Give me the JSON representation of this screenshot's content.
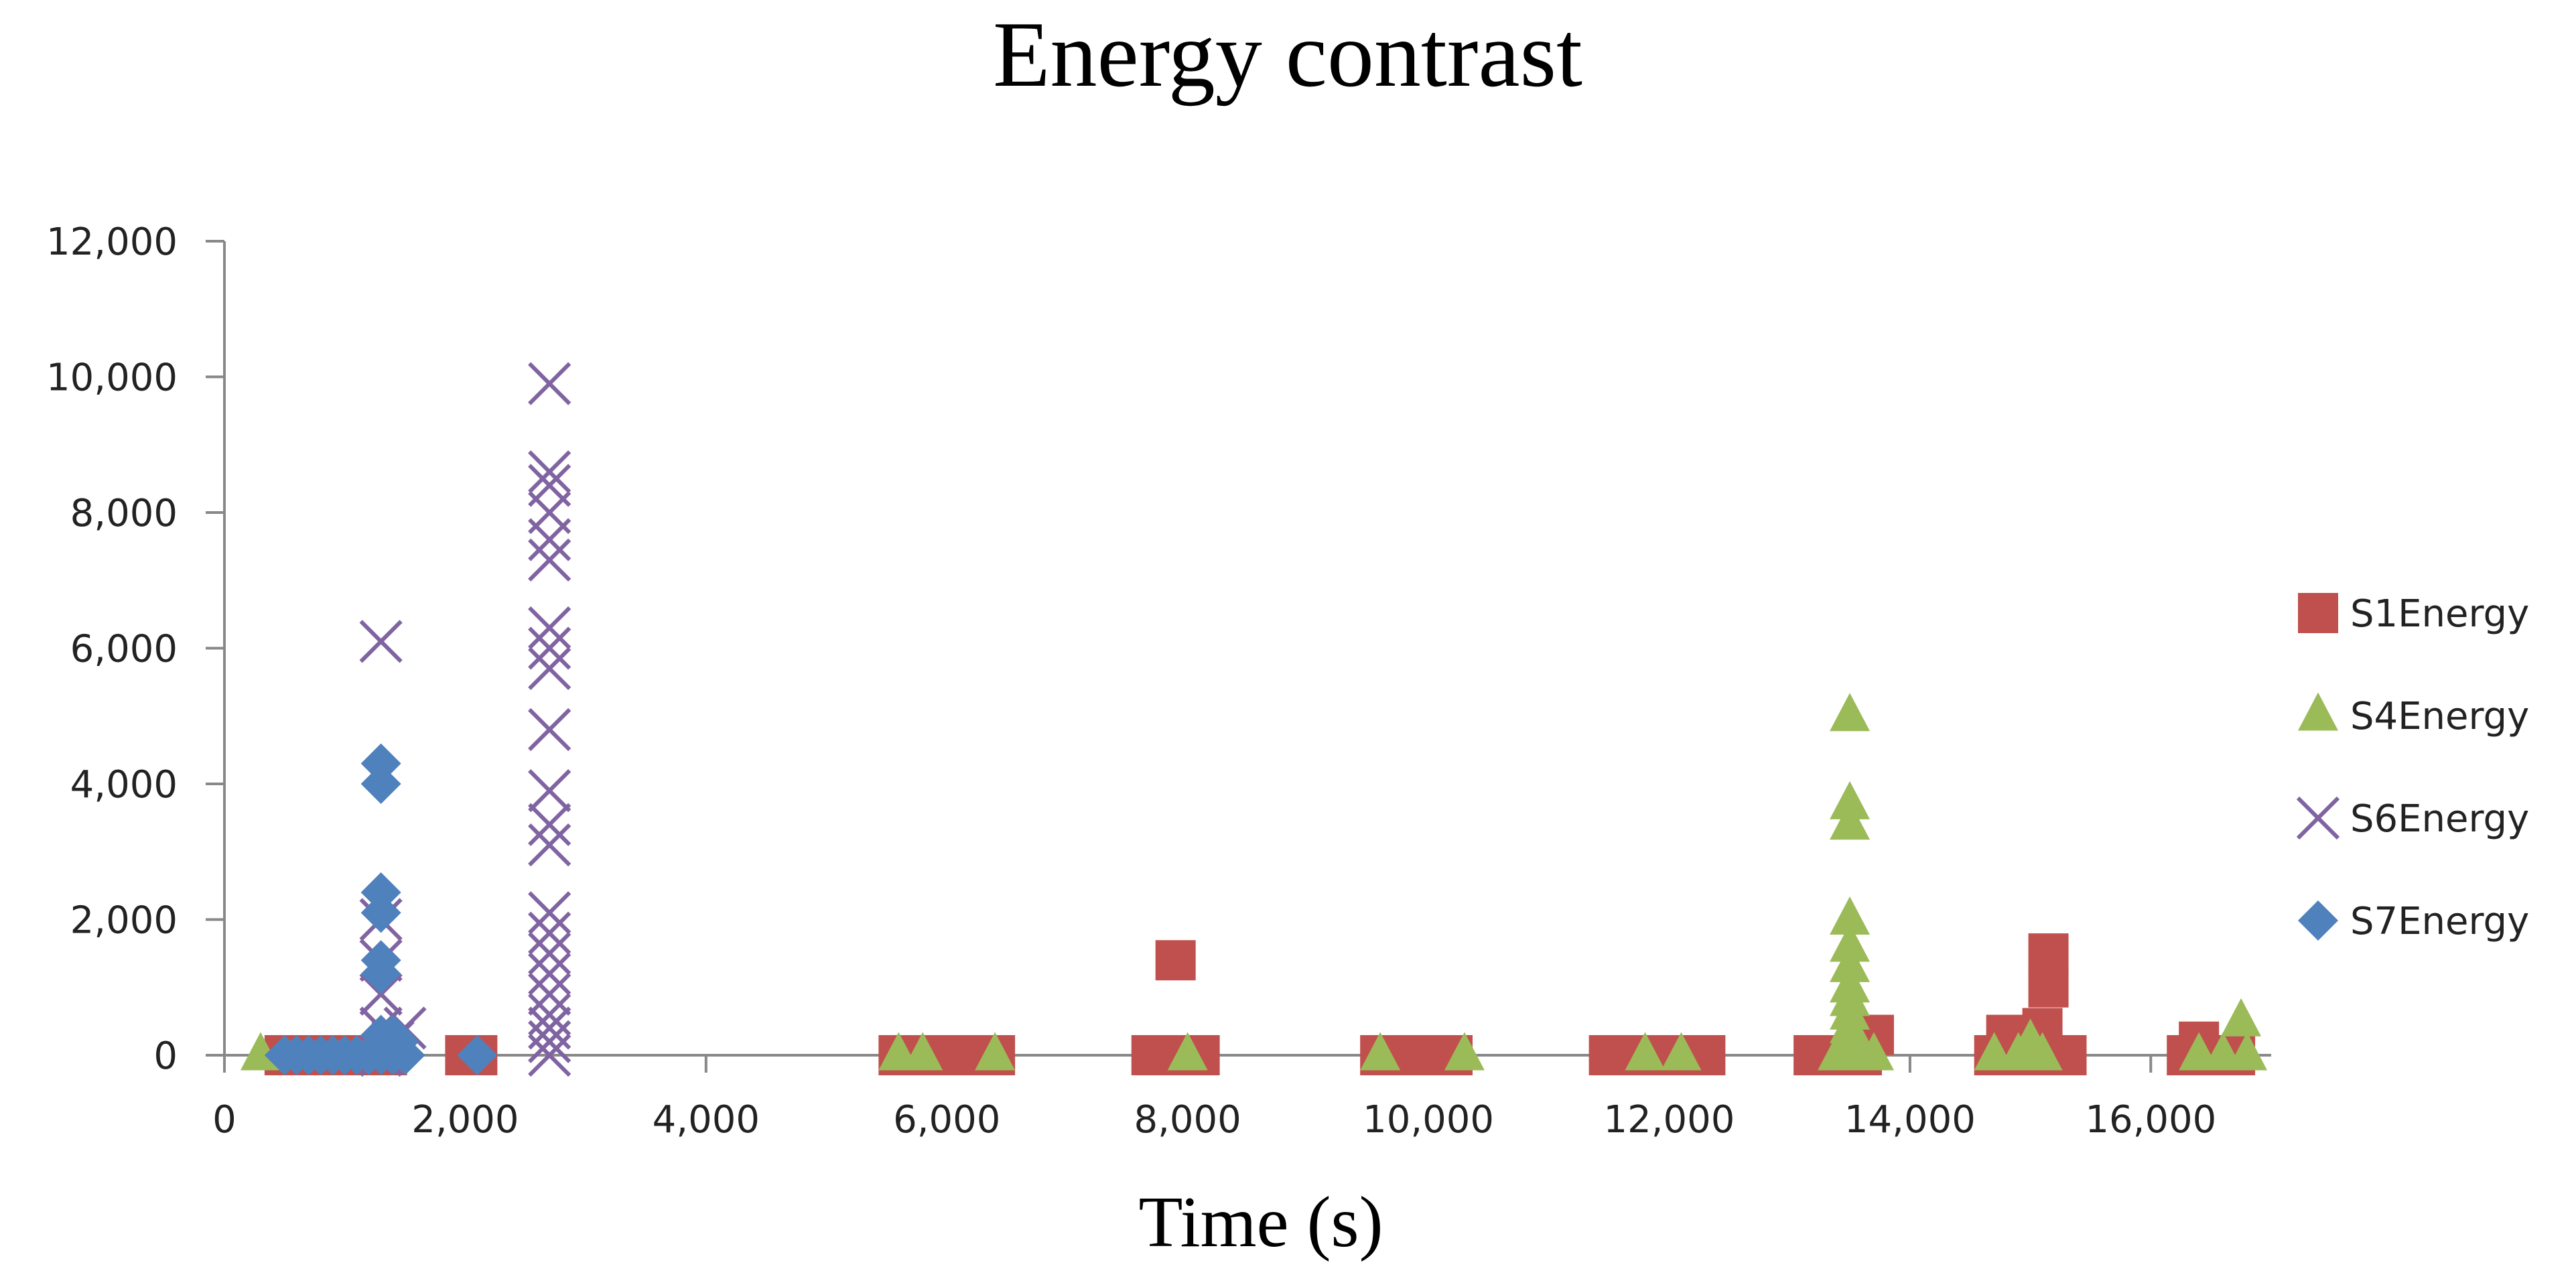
{
  "chart_data": {
    "type": "scatter",
    "title": "Energy contrast",
    "xlabel": "Time (s)",
    "ylabel": "",
    "xlim": [
      0,
      17000
    ],
    "ylim": [
      0,
      12000
    ],
    "xticks": [
      0,
      2000,
      4000,
      6000,
      8000,
      10000,
      12000,
      14000,
      16000
    ],
    "xtick_labels": [
      "0",
      "2,000",
      "4,000",
      "6,000",
      "8,000",
      "10,000",
      "12,000",
      "14,000",
      "16,000"
    ],
    "yticks": [
      0,
      2000,
      4000,
      6000,
      8000,
      10000,
      12000
    ],
    "ytick_labels": [
      "0",
      "2,000",
      "4,000",
      "6,000",
      "8,000",
      "10,000",
      "12,000"
    ],
    "grid": false,
    "legend_position": "right",
    "series": [
      {
        "name": "S1Energy",
        "marker": "square",
        "color": "#C0504D",
        "points": [
          [
            500,
            0
          ],
          [
            650,
            0
          ],
          [
            800,
            0
          ],
          [
            950,
            0
          ],
          [
            1100,
            0
          ],
          [
            1250,
            0
          ],
          [
            1350,
            0
          ],
          [
            2000,
            0
          ],
          [
            2100,
            0
          ],
          [
            5600,
            0
          ],
          [
            5800,
            0
          ],
          [
            6000,
            0
          ],
          [
            6200,
            0
          ],
          [
            6400,
            0
          ],
          [
            7700,
            0
          ],
          [
            7900,
            0
          ],
          [
            8100,
            0
          ],
          [
            7900,
            1400
          ],
          [
            9600,
            0
          ],
          [
            9800,
            0
          ],
          [
            10000,
            0
          ],
          [
            10200,
            0
          ],
          [
            11500,
            0
          ],
          [
            11700,
            0
          ],
          [
            11900,
            0
          ],
          [
            12100,
            0
          ],
          [
            12300,
            0
          ],
          [
            13200,
            0
          ],
          [
            13400,
            0
          ],
          [
            13600,
            0
          ],
          [
            13700,
            300
          ],
          [
            14700,
            0
          ],
          [
            14900,
            0
          ],
          [
            15100,
            0
          ],
          [
            15300,
            0
          ],
          [
            14800,
            300
          ],
          [
            15100,
            400
          ],
          [
            15150,
            1000
          ],
          [
            15150,
            1500
          ],
          [
            16300,
            0
          ],
          [
            16500,
            0
          ],
          [
            16700,
            0
          ],
          [
            16400,
            200
          ]
        ]
      },
      {
        "name": "S4Energy",
        "marker": "triangle",
        "color": "#9BBB59",
        "points": [
          [
            300,
            0
          ],
          [
            5600,
            0
          ],
          [
            5800,
            0
          ],
          [
            6400,
            0
          ],
          [
            8000,
            0
          ],
          [
            9600,
            0
          ],
          [
            10300,
            0
          ],
          [
            11800,
            0
          ],
          [
            12100,
            0
          ],
          [
            13400,
            0
          ],
          [
            13500,
            0
          ],
          [
            13600,
            0
          ],
          [
            13700,
            0
          ],
          [
            13500,
            200
          ],
          [
            13500,
            400
          ],
          [
            13500,
            600
          ],
          [
            13500,
            800
          ],
          [
            13500,
            1000
          ],
          [
            13500,
            1300
          ],
          [
            13500,
            1600
          ],
          [
            13500,
            2000
          ],
          [
            13500,
            3400
          ],
          [
            13500,
            3700
          ],
          [
            13500,
            5000
          ],
          [
            14700,
            0
          ],
          [
            14900,
            0
          ],
          [
            15100,
            0
          ],
          [
            15000,
            200
          ],
          [
            16400,
            0
          ],
          [
            16600,
            0
          ],
          [
            16800,
            0
          ],
          [
            16750,
            500
          ]
        ]
      },
      {
        "name": "S6Energy",
        "marker": "x",
        "color": "#8064A2",
        "points": [
          [
            1300,
            0
          ],
          [
            1300,
            400
          ],
          [
            1300,
            900
          ],
          [
            1300,
            1400
          ],
          [
            1300,
            2000
          ],
          [
            1300,
            6100
          ],
          [
            1400,
            200
          ],
          [
            1500,
            400
          ],
          [
            2700,
            0
          ],
          [
            2700,
            200
          ],
          [
            2700,
            400
          ],
          [
            2700,
            600
          ],
          [
            2700,
            900
          ],
          [
            2700,
            1200
          ],
          [
            2700,
            1500
          ],
          [
            2700,
            1800
          ],
          [
            2700,
            2100
          ],
          [
            2700,
            3100
          ],
          [
            2700,
            3400
          ],
          [
            2700,
            3900
          ],
          [
            2700,
            4800
          ],
          [
            2700,
            5700
          ],
          [
            2700,
            6000
          ],
          [
            2700,
            6300
          ],
          [
            2700,
            7300
          ],
          [
            2700,
            7600
          ],
          [
            2700,
            8000
          ],
          [
            2700,
            8400
          ],
          [
            2700,
            8600
          ],
          [
            2700,
            9900
          ]
        ]
      },
      {
        "name": "S7Energy",
        "marker": "diamond",
        "color": "#4F81BD",
        "points": [
          [
            500,
            0
          ],
          [
            600,
            0
          ],
          [
            700,
            0
          ],
          [
            800,
            0
          ],
          [
            900,
            0
          ],
          [
            1000,
            0
          ],
          [
            1100,
            0
          ],
          [
            1200,
            0
          ],
          [
            1300,
            0
          ],
          [
            1400,
            0
          ],
          [
            1500,
            0
          ],
          [
            1300,
            300
          ],
          [
            1400,
            300
          ],
          [
            1450,
            200
          ],
          [
            1300,
            1200
          ],
          [
            1300,
            1400
          ],
          [
            1300,
            2100
          ],
          [
            1300,
            2400
          ],
          [
            1300,
            4000
          ],
          [
            1300,
            4300
          ],
          [
            2100,
            0
          ]
        ]
      }
    ]
  }
}
